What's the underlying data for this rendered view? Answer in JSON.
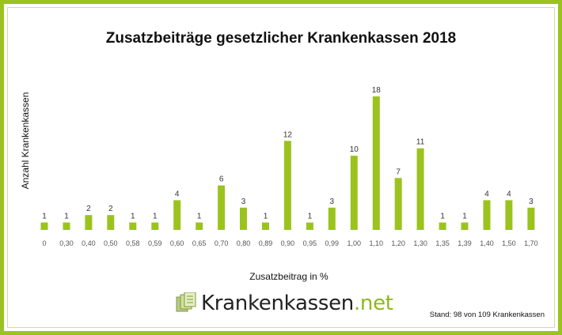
{
  "chart_data": {
    "type": "bar",
    "title": "Zusatzbeiträge gesetzlicher Krankenkassen 2018",
    "xlabel": "Zusatzbeitrag in %",
    "ylabel": "Anzahl Krankenkassen",
    "categories": [
      "0",
      "0,30",
      "0,40",
      "0,50",
      "0,58",
      "0,59",
      "0,60",
      "0,65",
      "0,70",
      "0,80",
      "0,89",
      "0,90",
      "0,95",
      "0,99",
      "1,00",
      "1,10",
      "1,20",
      "1,30",
      "1,35",
      "1,39",
      "1,40",
      "1,50",
      "1,70"
    ],
    "values": [
      1,
      1,
      2,
      2,
      1,
      1,
      4,
      1,
      6,
      3,
      1,
      12,
      1,
      3,
      10,
      18,
      7,
      11,
      1,
      1,
      4,
      4,
      3
    ],
    "ylim": [
      0,
      18
    ],
    "grid": false,
    "bar_color": "#9bc31f"
  },
  "footer": {
    "logo_text": "Krankenkassen",
    "logo_tld": ".net",
    "logo_icon": "documents-icon",
    "stand": "Stand: 98 von 109 Krankenkassen"
  },
  "colors": {
    "frame": "#9bc31f",
    "accent": "#8cb81c"
  }
}
